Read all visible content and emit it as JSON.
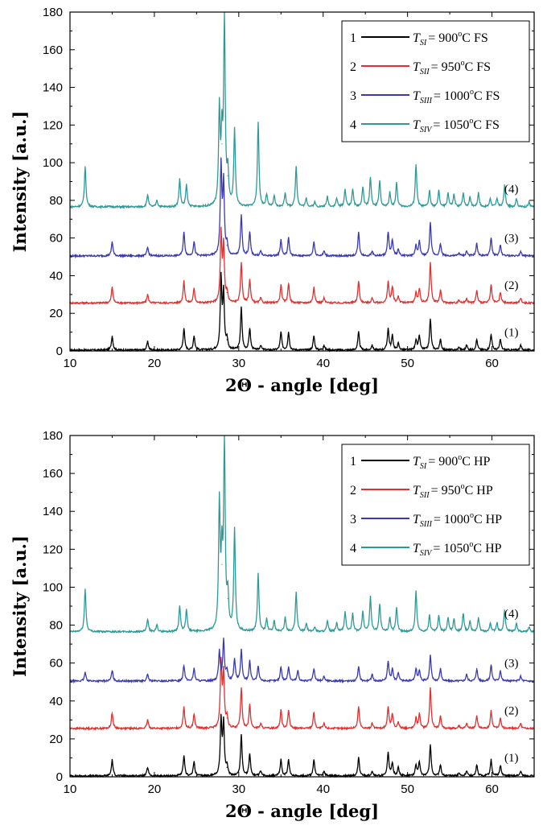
{
  "chart_data": [
    {
      "type": "line",
      "title": "",
      "xlabel": "2Θ - angle [deg]",
      "ylabel": "Intensity  [a.u.]",
      "xlim": [
        10,
        65
      ],
      "ylim": [
        0,
        180
      ],
      "xticks": [
        10,
        20,
        30,
        40,
        50,
        60
      ],
      "yticks": [
        0,
        20,
        40,
        60,
        80,
        100,
        120,
        140,
        160,
        180
      ],
      "grid": false,
      "legend_position": "top-right",
      "series": [
        {
          "name": "1 T_SI = 900°C FS",
          "legend": {
            "index": "1",
            "sym": "T",
            "sub": "SI",
            "rest_a": "= 900",
            "sup": "o",
            "rest_b": "C FS"
          },
          "label": "(1)",
          "color": "#000000",
          "baseline": 0.5,
          "x": [
            15.0,
            19.2,
            23.5,
            24.7,
            27.9,
            28.2,
            28.6,
            30.3,
            31.3,
            32.6,
            35.0,
            35.9,
            38.9,
            40.1,
            44.2,
            45.8,
            47.7,
            48.2,
            48.9,
            51.0,
            51.4,
            52.7,
            53.9,
            56.1,
            57.0,
            58.2,
            59.9,
            61.0,
            63.4
          ],
          "y": [
            8,
            5,
            12,
            8,
            38,
            30,
            6,
            23,
            12,
            3,
            10,
            10,
            8,
            3,
            10,
            3,
            12,
            8,
            4,
            6,
            8,
            17,
            6,
            2,
            3,
            6,
            9,
            6,
            3
          ]
        },
        {
          "name": "2 T_SII = 950°C FS",
          "legend": {
            "index": "2",
            "sym": "T",
            "sub": "SII",
            "rest_a": "= 950",
            "sup": "o",
            "rest_b": "C FS"
          },
          "label": "(2)",
          "color": "#e03030",
          "baseline": 25.5,
          "x": [
            15.0,
            19.2,
            23.5,
            24.7,
            27.9,
            28.2,
            28.6,
            30.3,
            31.3,
            32.6,
            35.0,
            35.9,
            38.9,
            40.1,
            44.2,
            45.8,
            47.7,
            48.2,
            48.9,
            51.0,
            51.4,
            52.7,
            53.9,
            56.1,
            57.0,
            58.2,
            59.9,
            61.0,
            63.4
          ],
          "y": [
            34,
            30,
            37,
            33,
            62,
            55,
            31,
            47,
            38,
            28,
            35,
            36,
            34,
            28,
            37,
            28,
            37,
            34,
            29,
            31,
            33,
            47,
            32,
            27,
            28,
            32,
            35,
            31,
            28
          ]
        },
        {
          "name": "3 T_SIII = 1000°C FS",
          "legend": {
            "index": "3",
            "sym": "T",
            "sub": "SIII",
            "rest_a": "= 1000",
            "sup": "o",
            "rest_b": "C FS"
          },
          "label": "(3)",
          "color": "#3a3ab0",
          "baseline": 50.5,
          "x": [
            15.0,
            19.2,
            23.5,
            24.7,
            27.9,
            28.2,
            28.6,
            30.3,
            31.3,
            32.6,
            35.0,
            35.9,
            38.9,
            40.1,
            44.2,
            45.8,
            47.7,
            48.2,
            48.9,
            51.0,
            51.4,
            52.7,
            53.9,
            56.1,
            57.0,
            58.2,
            59.9,
            61.0,
            63.4
          ],
          "y": [
            58,
            55,
            63,
            58,
            98,
            88,
            56,
            72,
            63,
            53,
            59,
            60,
            58,
            53,
            63,
            53,
            63,
            59,
            54,
            56,
            58,
            68,
            57,
            52,
            53,
            57,
            60,
            56,
            53
          ]
        },
        {
          "name": "4 T_SIV = 1050°C FS",
          "legend": {
            "index": "4",
            "sym": "T",
            "sub": "SIV",
            "rest_a": "= 1050",
            "sup": "o",
            "rest_b": "C FS"
          },
          "label": "(4)",
          "color": "#2e9a98",
          "baseline": 76.5,
          "x": [
            11.8,
            14.5,
            19.2,
            20.3,
            23.0,
            23.8,
            27.7,
            28.0,
            28.3,
            28.7,
            29.5,
            32.3,
            33.3,
            34.2,
            35.5,
            36.8,
            38.0,
            39.0,
            40.5,
            41.6,
            42.6,
            43.5,
            44.7,
            45.6,
            46.7,
            47.9,
            48.7,
            51.0,
            52.6,
            53.7,
            54.8,
            55.5,
            56.6,
            57.4,
            58.4,
            59.8,
            60.6,
            61.5,
            62.9,
            64.4
          ],
          "y": [
            98,
            77,
            83,
            80,
            91,
            88,
            127,
            110,
            175,
            93,
            117,
            121,
            83,
            82,
            84,
            98,
            81,
            79,
            82,
            81,
            86,
            86,
            87,
            92,
            90,
            84,
            89,
            99,
            85,
            85,
            84,
            83,
            84,
            82,
            84,
            81,
            81,
            88,
            81,
            79
          ]
        }
      ]
    },
    {
      "type": "line",
      "title": "",
      "xlabel": "2Θ - angle [deg]",
      "ylabel": "Intensity  [a.u.]",
      "xlim": [
        10,
        65
      ],
      "ylim": [
        0,
        180
      ],
      "xticks": [
        10,
        20,
        30,
        40,
        50,
        60
      ],
      "yticks": [
        0,
        20,
        40,
        60,
        80,
        100,
        120,
        140,
        160,
        180
      ],
      "grid": false,
      "legend_position": "top-right",
      "series": [
        {
          "name": "1 T_SI = 900°C HP",
          "legend": {
            "index": "1",
            "sym": "T",
            "sub": "SI",
            "rest_a": "= 900",
            "sup": "o",
            "rest_b": "C HP"
          },
          "label": "(1)",
          "color": "#000000",
          "baseline": 0.5,
          "x": [
            15.0,
            19.2,
            23.5,
            24.7,
            27.9,
            28.2,
            28.6,
            30.3,
            31.3,
            32.6,
            35.0,
            35.9,
            38.9,
            40.1,
            44.2,
            45.8,
            47.7,
            48.2,
            48.9,
            51.0,
            51.4,
            52.7,
            53.9,
            56.1,
            57.0,
            58.2,
            59.9,
            61.0,
            63.4
          ],
          "y": [
            9,
            5,
            11,
            8,
            30,
            28,
            5,
            22,
            12,
            3,
            9,
            9,
            9,
            3,
            10,
            3,
            13,
            7,
            5,
            6,
            8,
            17,
            6,
            2,
            3,
            6,
            9,
            6,
            3
          ]
        },
        {
          "name": "2 T_SII = 950°C HP",
          "legend": {
            "index": "2",
            "sym": "T",
            "sub": "SII",
            "rest_a": "= 950",
            "sup": "o",
            "rest_b": "C HP"
          },
          "label": "(2)",
          "color": "#e03030",
          "baseline": 25.5,
          "x": [
            15.0,
            19.2,
            23.5,
            24.7,
            27.9,
            28.2,
            28.6,
            30.3,
            31.3,
            32.6,
            35.0,
            35.9,
            38.9,
            40.1,
            44.2,
            45.8,
            47.7,
            48.2,
            48.9,
            51.0,
            51.4,
            52.7,
            53.9,
            56.1,
            57.0,
            58.2,
            59.9,
            61.0,
            63.4
          ],
          "y": [
            34,
            30,
            37,
            33,
            60,
            54,
            31,
            47,
            38,
            28,
            35,
            35,
            34,
            28,
            37,
            28,
            37,
            33,
            29,
            31,
            33,
            47,
            32,
            27,
            28,
            32,
            35,
            31,
            28
          ]
        },
        {
          "name": "3 T_SIII = 1000°C HP",
          "legend": {
            "index": "3",
            "sym": "T",
            "sub": "SIII",
            "rest_a": "= 1000",
            "sup": "o",
            "rest_b": "C HP"
          },
          "label": "(3)",
          "color": "#3a3ab0",
          "baseline": 50.5,
          "x": [
            11.8,
            15.0,
            19.2,
            23.5,
            24.7,
            27.7,
            28.2,
            28.6,
            29.5,
            30.3,
            31.3,
            32.3,
            35.0,
            35.9,
            37.0,
            38.9,
            40.1,
            44.2,
            45.8,
            47.7,
            48.2,
            48.9,
            51.0,
            51.4,
            52.7,
            53.9,
            57.0,
            58.2,
            59.9,
            61.0,
            63.4
          ],
          "y": [
            55,
            56,
            54,
            59,
            57,
            66,
            72,
            56,
            62,
            67,
            61,
            58,
            58,
            58,
            56,
            57,
            53,
            58,
            54,
            61,
            57,
            55,
            57,
            56,
            64,
            57,
            54,
            57,
            59,
            56,
            53
          ]
        },
        {
          "name": "4 T_SIV = 1050°C HP",
          "legend": {
            "index": "4",
            "sym": "T",
            "sub": "SIV",
            "rest_a": "= 1050",
            "sup": "o",
            "rest_b": "C HP"
          },
          "label": "(4)",
          "color": "#2e9a98",
          "baseline": 76.5,
          "x": [
            11.8,
            14.5,
            19.2,
            20.3,
            23.0,
            23.8,
            27.7,
            28.0,
            28.3,
            28.7,
            29.5,
            32.3,
            33.3,
            34.2,
            35.5,
            36.8,
            38.0,
            39.0,
            40.5,
            41.6,
            42.6,
            43.5,
            44.7,
            45.6,
            46.7,
            47.9,
            48.7,
            51.0,
            52.6,
            53.7,
            54.8,
            55.5,
            56.6,
            57.4,
            58.4,
            59.8,
            60.6,
            61.5,
            62.9,
            64.4
          ],
          "y": [
            99,
            77,
            83,
            80,
            90,
            88,
            143,
            112,
            175,
            94,
            130,
            107,
            83,
            82,
            84,
            97,
            81,
            79,
            82,
            81,
            87,
            86,
            87,
            95,
            91,
            84,
            89,
            98,
            85,
            85,
            84,
            83,
            86,
            82,
            84,
            81,
            81,
            88,
            81,
            79
          ]
        }
      ]
    }
  ]
}
